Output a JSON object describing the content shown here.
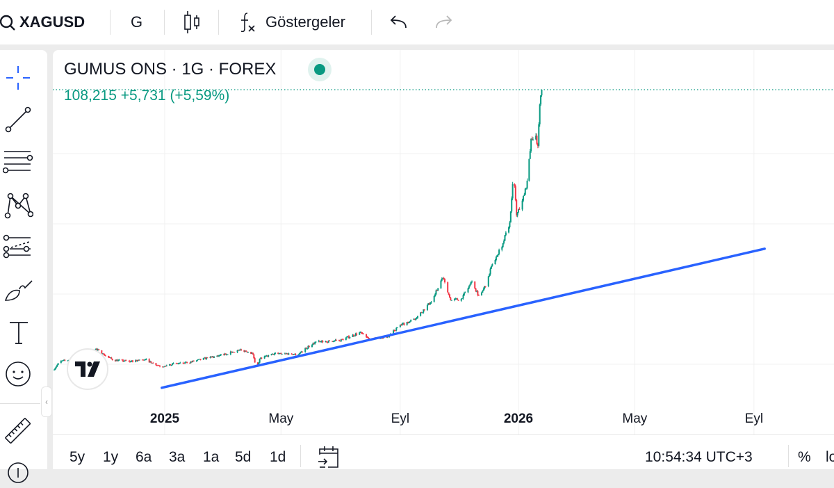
{
  "toolbar": {
    "symbol": "XAGUSD",
    "interval": "G",
    "indicators_label": "Göstergeler",
    "icons": [
      "search-icon",
      "candles-icon",
      "function-icon",
      "undo-icon",
      "redo-icon"
    ]
  },
  "left_tools": [
    "crosshair-icon",
    "trend-line-icon",
    "fib-lines-icon",
    "pattern-icon",
    "forecast-icon",
    "brush-icon",
    "text-icon",
    "emoji-icon",
    "ruler-icon",
    "zoom-icon"
  ],
  "legend": {
    "title": "GUMUS ONS · 1G · FOREX",
    "price": "108,215",
    "change": "+5,731",
    "change_pct": "(+5,59%)",
    "status_color": "#089981"
  },
  "bottom": {
    "ranges": [
      "5y",
      "1y",
      "6a",
      "3a",
      "1a",
      "5d",
      "1d"
    ],
    "clock": "10:54:34 UTC+3",
    "percent_label": "%",
    "log_label": "lo"
  },
  "colors": {
    "up": "#089981",
    "down": "#f23645",
    "trendline": "#2962ff",
    "accent": "#2962ff"
  },
  "chart_data": {
    "type": "candlestick",
    "symbol": "XAGUSD",
    "interval": "1D",
    "x_tick_labels": [
      {
        "label": "2025",
        "date": "2025-01-01",
        "bold": true
      },
      {
        "label": "May",
        "date": "2025-05-01",
        "bold": false
      },
      {
        "label": "Eyl",
        "date": "2025-09-01",
        "bold": false
      },
      {
        "label": "2026",
        "date": "2026-01-01",
        "bold": true
      },
      {
        "label": "May",
        "date": "2026-05-01",
        "bold": false
      },
      {
        "label": "Eyl",
        "date": "2026-09-01",
        "bold": false
      }
    ],
    "y_gridlines": [
      30,
      50,
      70,
      90
    ],
    "grid": true,
    "last_price": 108.215,
    "closes": [
      [
        "2024-09-09",
        28.4
      ],
      [
        "2024-09-16",
        30.8
      ],
      [
        "2024-09-25",
        31.2
      ],
      [
        "2024-10-23",
        34.4
      ],
      [
        "2024-10-31",
        32.8
      ],
      [
        "2024-11-10",
        31.2
      ],
      [
        "2024-11-28",
        30.8
      ],
      [
        "2024-12-13",
        31.4
      ],
      [
        "2024-12-20",
        30.4
      ],
      [
        "2024-12-31",
        29.2
      ],
      [
        "2025-01-07",
        30.0
      ],
      [
        "2025-01-25",
        30.4
      ],
      [
        "2025-02-15",
        31.8
      ],
      [
        "2025-03-02",
        32.6
      ],
      [
        "2025-03-19",
        34.0
      ],
      [
        "2025-03-30",
        33.6
      ],
      [
        "2025-04-03",
        32.8
      ],
      [
        "2025-04-07",
        28.8
      ],
      [
        "2025-04-10",
        31.6
      ],
      [
        "2025-04-28",
        33.2
      ],
      [
        "2025-05-19",
        32.8
      ],
      [
        "2025-06-06",
        36.3
      ],
      [
        "2025-07-01",
        36.7
      ],
      [
        "2025-07-23",
        39.1
      ],
      [
        "2025-08-03",
        37.1
      ],
      [
        "2025-08-21",
        37.9
      ],
      [
        "2025-08-31",
        40.7
      ],
      [
        "2025-09-18",
        43.1
      ],
      [
        "2025-10-03",
        47.6
      ],
      [
        "2025-10-16",
        54.6
      ],
      [
        "2025-10-24",
        48.2
      ],
      [
        "2025-11-04",
        48.6
      ],
      [
        "2025-11-15",
        53.6
      ],
      [
        "2025-11-22",
        49.6
      ],
      [
        "2025-11-29",
        52.2
      ],
      [
        "2025-12-06",
        58.5
      ],
      [
        "2025-12-17",
        64.5
      ],
      [
        "2025-12-24",
        70.4
      ],
      [
        "2025-12-28",
        84.3
      ],
      [
        "2025-12-31",
        72.4
      ],
      [
        "2026-01-08",
        78.3
      ],
      [
        "2026-01-11",
        82.3
      ],
      [
        "2026-01-15",
        94.2
      ],
      [
        "2026-01-20",
        95.1
      ],
      [
        "2026-01-22",
        92.2
      ],
      [
        "2026-01-24",
        104.0
      ],
      [
        "2026-01-26",
        108.2
      ]
    ],
    "trendline": {
      "start": [
        "2024-12-29",
        23.3
      ],
      "end": [
        "2026-09-12",
        62.9
      ]
    }
  }
}
